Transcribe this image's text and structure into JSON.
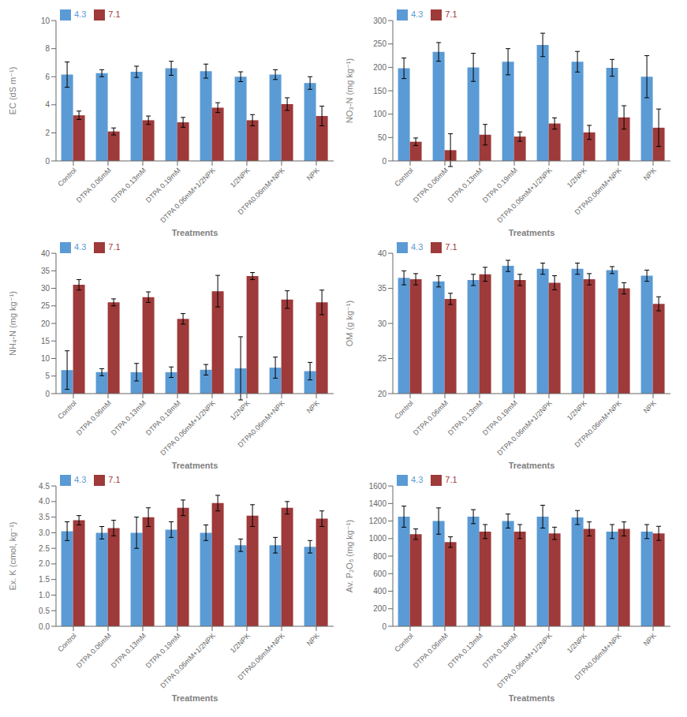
{
  "chart_data": [
    {
      "type": "bar",
      "xlabel": "Treatments",
      "ylabel": "EC (dS m⁻¹)",
      "categories": [
        "Control",
        "DTPA 0.06mM",
        "DTPA 0.13mM",
        "DTPA 0.19mM",
        "DTPA 0.06mM+1/2NPK",
        "1/2NPK",
        "DTPA0.06mM+NPK",
        "NPK"
      ],
      "series": [
        {
          "name": "4.3",
          "color": "#5B9BD5",
          "values": [
            6.15,
            6.25,
            6.35,
            6.6,
            6.4,
            6.0,
            6.15,
            5.55
          ],
          "errors": [
            0.9,
            0.25,
            0.4,
            0.5,
            0.5,
            0.35,
            0.35,
            0.45
          ]
        },
        {
          "name": "7.1",
          "color": "#9E3A3A",
          "values": [
            3.25,
            2.1,
            2.9,
            2.75,
            3.8,
            2.9,
            4.05,
            3.2
          ],
          "errors": [
            0.3,
            0.25,
            0.3,
            0.35,
            0.35,
            0.4,
            0.45,
            0.7
          ]
        }
      ],
      "ylim": [
        0,
        10.0
      ],
      "yticks": [
        0,
        2,
        4,
        6,
        8,
        10
      ],
      "legend": "upper left",
      "grid": false
    },
    {
      "type": "bar",
      "xlabel": "Treatments",
      "ylabel": "NO₃-N (mg kg⁻¹)",
      "categories": [
        "Control",
        "DTPA 0.06mM",
        "DTPA 0.13mM",
        "DTPA 0.19mM",
        "DTPA 0.06mM+1/2NPK",
        "1/2NPK",
        "DTPA0.06mM+NPK",
        "NPK"
      ],
      "series": [
        {
          "name": "4.3",
          "color": "#5B9BD5",
          "values": [
            198,
            233,
            200,
            212,
            248,
            212,
            199,
            180
          ],
          "errors": [
            22,
            20,
            30,
            28,
            25,
            22,
            18,
            45
          ]
        },
        {
          "name": "7.1",
          "color": "#9E3A3A",
          "values": [
            41,
            23,
            56,
            52,
            80,
            61,
            93,
            71
          ],
          "errors": [
            8,
            35,
            22,
            10,
            12,
            15,
            25,
            40
          ]
        }
      ],
      "ylim": [
        0,
        300
      ],
      "yticks": [
        0,
        50,
        100,
        150,
        200,
        250,
        300
      ],
      "legend": "upper left",
      "grid": false
    },
    {
      "type": "bar",
      "xlabel": "Treatments",
      "ylabel": "NH₄-N (mg kg⁻¹)",
      "categories": [
        "Control",
        "DTPA 0.06mM",
        "DTPA 0.13mM",
        "DTPA 0.19mM",
        "DTPA 0.06mM+1/2NPK",
        "1/2NPK",
        "DTPA0.06mM+NPK",
        "NPK"
      ],
      "series": [
        {
          "name": "4.3",
          "color": "#5B9BD5",
          "values": [
            6.7,
            6.1,
            6.1,
            6.1,
            6.8,
            7.2,
            7.4,
            6.4
          ],
          "errors": [
            5.5,
            1.0,
            2.5,
            1.5,
            1.5,
            9.0,
            3.0,
            2.5
          ]
        },
        {
          "name": "7.1",
          "color": "#9E3A3A",
          "values": [
            31.0,
            26.0,
            27.5,
            21.3,
            29.2,
            33.5,
            26.8,
            26.0
          ],
          "errors": [
            1.5,
            1.0,
            1.5,
            1.5,
            4.5,
            1.0,
            2.5,
            3.5
          ]
        }
      ],
      "ylim": [
        0,
        40
      ],
      "yticks": [
        0,
        5,
        10,
        15,
        20,
        25,
        30,
        35,
        40
      ],
      "legend": "upper left",
      "grid": false
    },
    {
      "type": "bar",
      "xlabel": "Treatments",
      "ylabel": "OM (g kg⁻¹)",
      "categories": [
        "Control",
        "DTPA 0.06mM",
        "DTPA 0.13mM",
        "DTPA 0.19mM",
        "DTPA 0.06mM+1/2NPK",
        "1/2NPK",
        "DTPA0.06mM+NPK",
        "NPK"
      ],
      "series": [
        {
          "name": "4.3",
          "color": "#5B9BD5",
          "values": [
            36.5,
            36.0,
            36.2,
            38.2,
            37.8,
            37.8,
            37.6,
            36.8
          ],
          "errors": [
            1.0,
            0.8,
            0.8,
            0.8,
            0.8,
            0.8,
            0.5,
            0.8
          ]
        },
        {
          "name": "7.1",
          "color": "#9E3A3A",
          "values": [
            36.3,
            33.5,
            37.0,
            36.2,
            35.8,
            36.3,
            35.0,
            32.8
          ],
          "errors": [
            0.8,
            0.8,
            1.0,
            0.8,
            1.0,
            0.8,
            0.8,
            1.0
          ]
        }
      ],
      "ylim": [
        20,
        40
      ],
      "yticks": [
        20,
        25,
        30,
        35,
        40
      ],
      "legend": "upper left",
      "grid": false
    },
    {
      "type": "bar",
      "xlabel": "Treatments",
      "ylabel": "Ex. K (cmol, kg⁻¹)",
      "categories": [
        "Control",
        "DTPA 0.06mM",
        "DTPA 0.13mM",
        "DTPA 0.19mM",
        "DTPA 0.06mM+1/2NPK",
        "1/2NPK",
        "DTPA0.06mM+NPK",
        "NPK"
      ],
      "series": [
        {
          "name": "4.3",
          "color": "#5B9BD5",
          "values": [
            3.05,
            3.0,
            3.0,
            3.1,
            3.0,
            2.6,
            2.6,
            2.55
          ],
          "errors": [
            0.3,
            0.2,
            0.5,
            0.25,
            0.25,
            0.2,
            0.25,
            0.2
          ]
        },
        {
          "name": "7.1",
          "color": "#9E3A3A",
          "values": [
            3.4,
            3.15,
            3.5,
            3.8,
            3.95,
            3.55,
            3.8,
            3.45
          ],
          "errors": [
            0.15,
            0.25,
            0.3,
            0.25,
            0.25,
            0.35,
            0.2,
            0.25
          ]
        }
      ],
      "ylim": [
        0.0,
        4.5
      ],
      "yticks": [
        {
          "value": 0,
          "label": "0.0"
        },
        {
          "value": 0.5,
          "label": "0.5"
        },
        {
          "value": 1,
          "label": "1.0"
        },
        {
          "value": 1.5,
          "label": "1.5"
        },
        {
          "value": 2,
          "label": "2.0"
        },
        {
          "value": 2.5,
          "label": "2.5"
        },
        {
          "value": 3,
          "label": "3.0"
        },
        {
          "value": 3.5,
          "label": "3.5"
        },
        {
          "value": 4,
          "label": "4.0"
        },
        {
          "value": 4.5,
          "label": "4.5"
        }
      ],
      "legend": "upper left",
      "grid": false
    },
    {
      "type": "bar",
      "xlabel": "Treatments",
      "ylabel": "Av. P₂O₅ (mg kg⁻¹)",
      "categories": [
        "Control",
        "DTPA 0.06mM",
        "DTPA 0.13mM",
        "DTPA 0.19mM",
        "DTPA 0.06mM+1/2NPK",
        "1/2NPK",
        "DTPA0.06mM+NPK",
        "NPK"
      ],
      "series": [
        {
          "name": "4.3",
          "color": "#5B9BD5",
          "values": [
            1250,
            1200,
            1250,
            1200,
            1250,
            1240,
            1080,
            1080
          ],
          "errors": [
            120,
            150,
            80,
            80,
            130,
            80,
            80,
            80
          ]
        },
        {
          "name": "7.1",
          "color": "#9E3A3A",
          "values": [
            1050,
            960,
            1080,
            1080,
            1060,
            1110,
            1110,
            1060
          ],
          "errors": [
            60,
            60,
            80,
            80,
            70,
            80,
            80,
            80
          ]
        }
      ],
      "ylim": [
        0,
        1600
      ],
      "yticks": [
        0,
        200,
        400,
        600,
        800,
        1000,
        1200,
        1400,
        1600
      ],
      "legend": "upper left",
      "grid": false
    }
  ]
}
